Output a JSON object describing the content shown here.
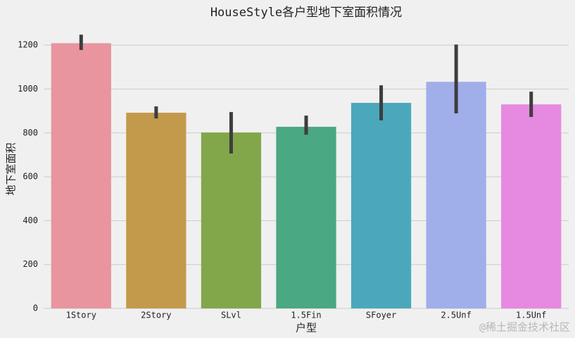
{
  "chart_data": {
    "type": "bar",
    "title": "HouseStyle各户型地下室面积情况",
    "x_label": "户型",
    "y_label": "地下室面积",
    "categories": [
      "1Story",
      "2Story",
      "SLvl",
      "1.5Fin",
      "SFoyer",
      "2.5Unf",
      "1.5Unf"
    ],
    "values": [
      1209,
      892,
      802,
      828,
      937,
      1033,
      930
    ],
    "ci_low": [
      1178,
      866,
      706,
      792,
      857,
      889,
      873
    ],
    "ci_high": [
      1248,
      921,
      895,
      879,
      1017,
      1203,
      988
    ],
    "colors": [
      "#e8959f",
      "#c39a4b",
      "#82a74a",
      "#4aa882",
      "#4ba8bc",
      "#a0aeea",
      "#e689e0"
    ],
    "error_color": "#3d3d3d",
    "ylim": [
      0,
      1300
    ],
    "yticks": [
      0,
      200,
      400,
      600,
      800,
      1000,
      1200
    ],
    "grid": true,
    "watermark": "@稀土掘金技术社区"
  }
}
